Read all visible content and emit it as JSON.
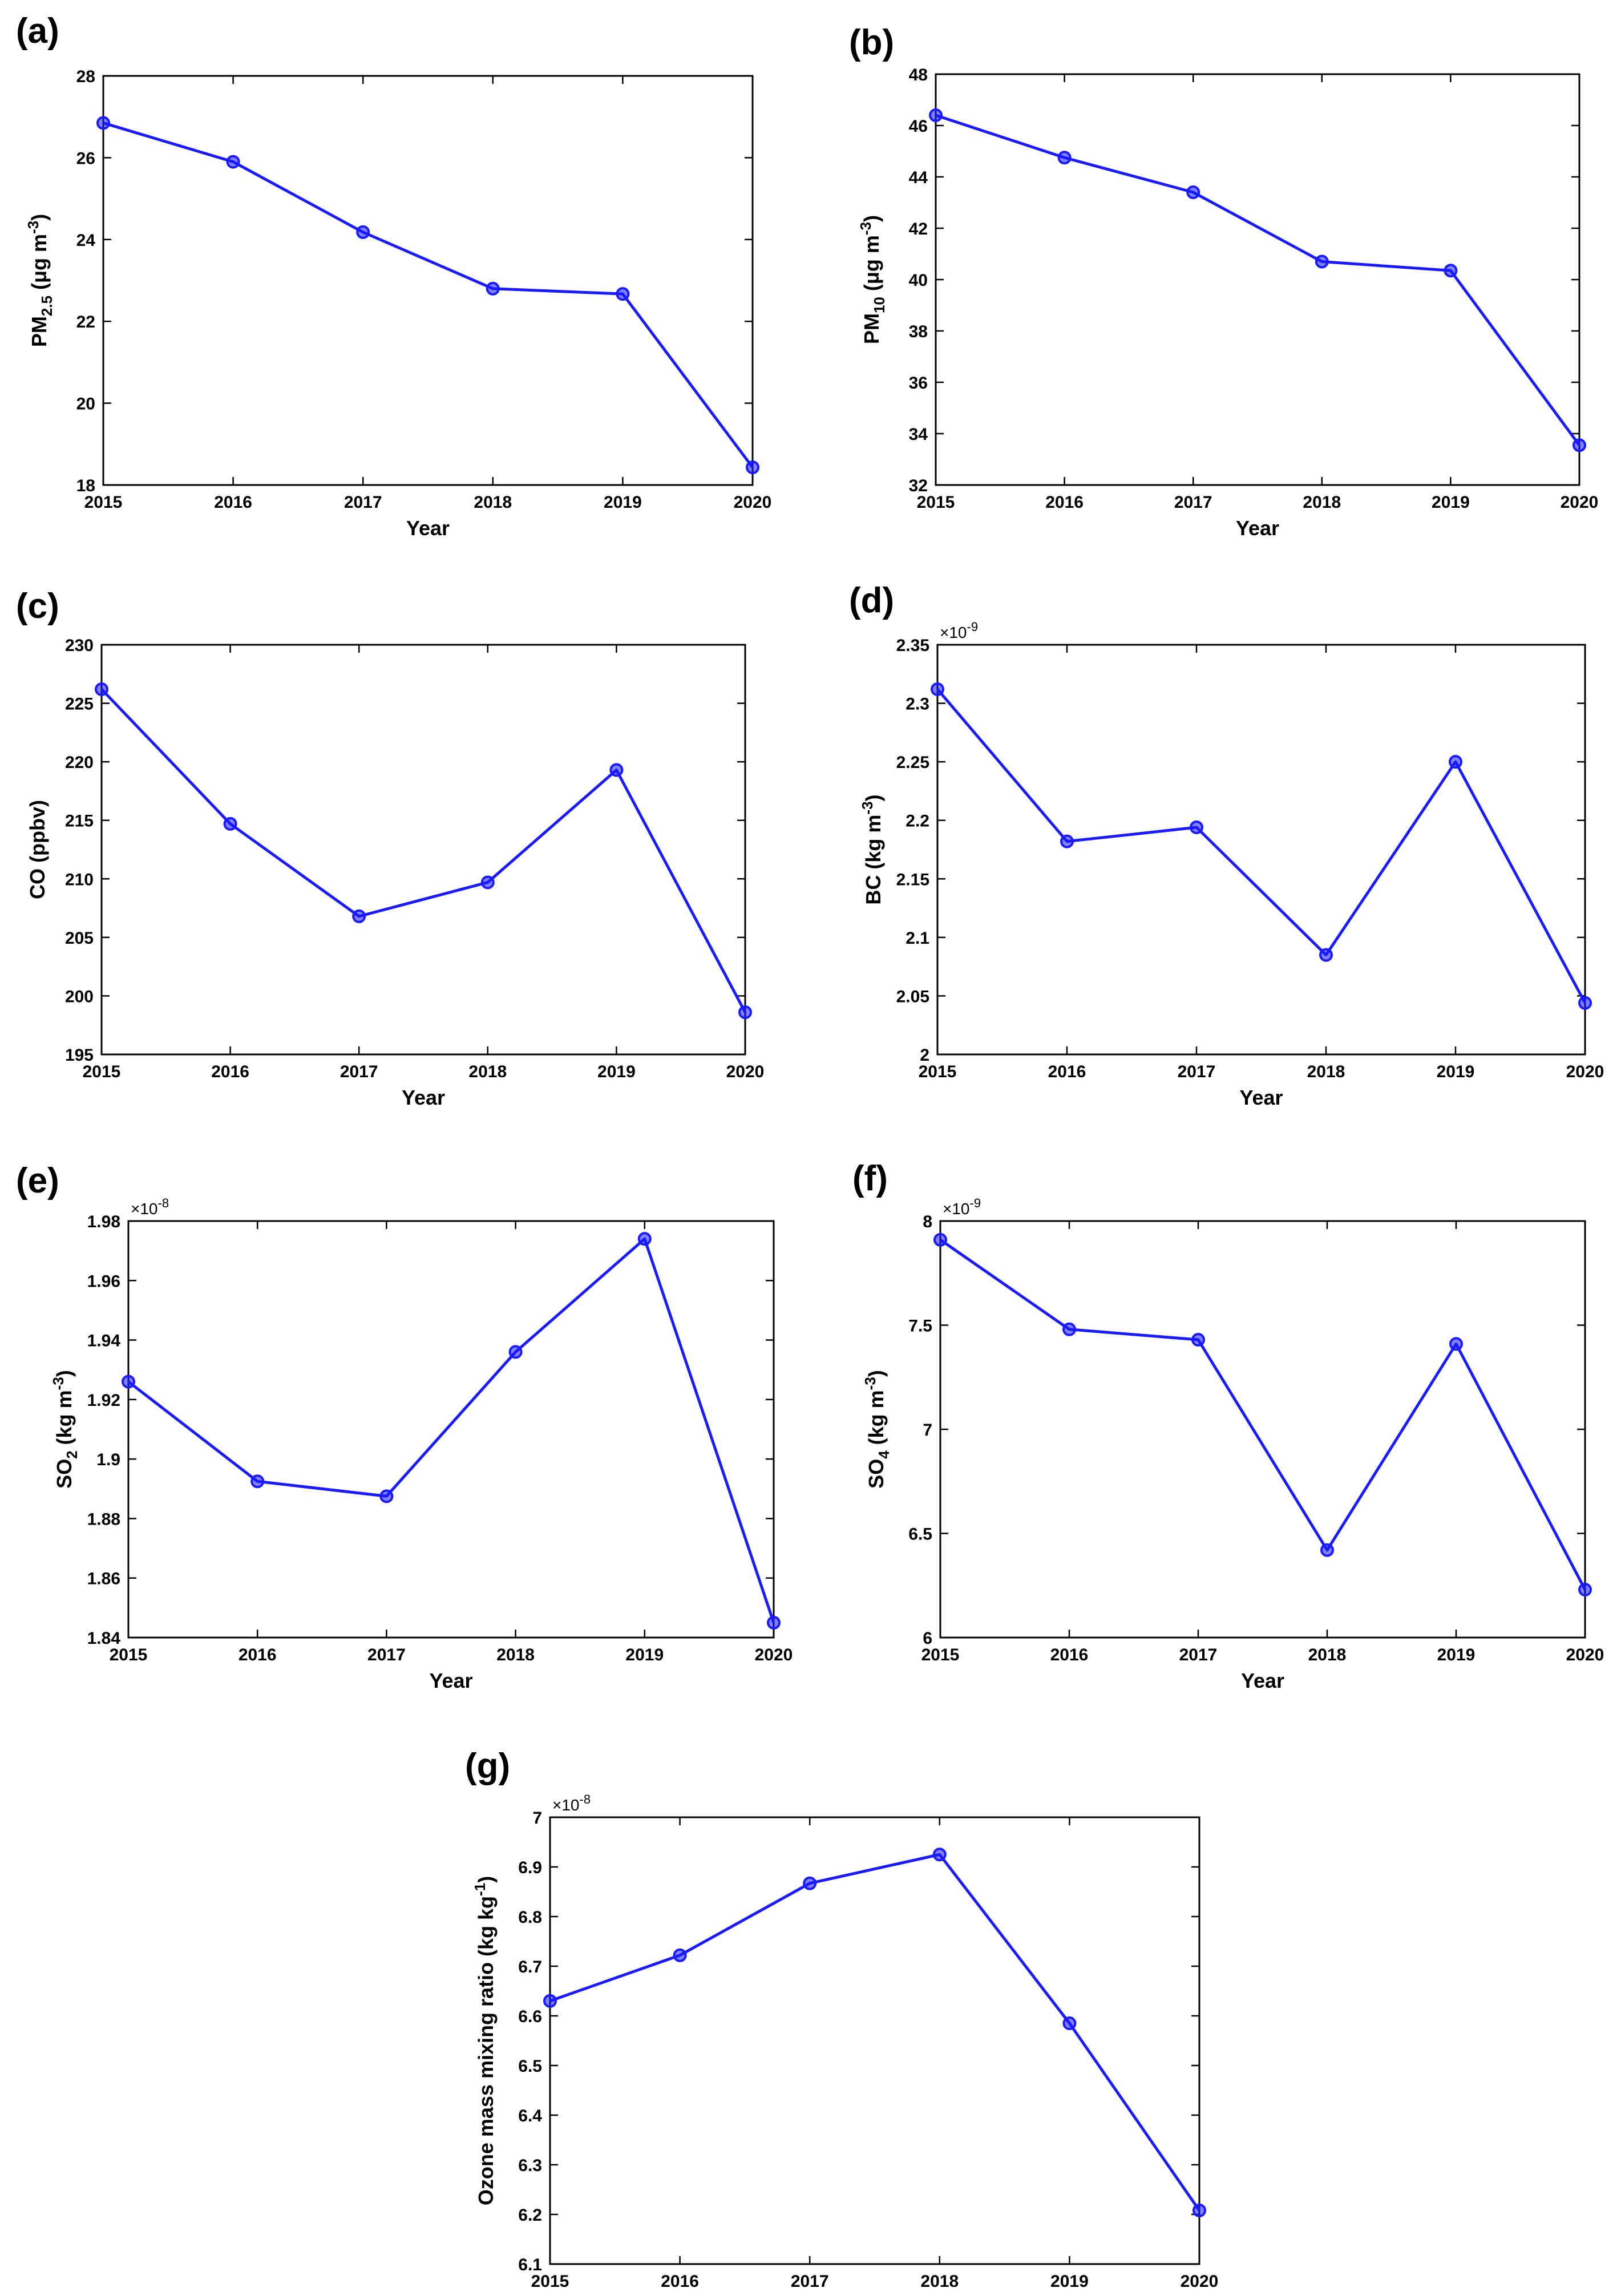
{
  "colors": {
    "series": "#1a1aff",
    "axis": "#000000",
    "background": "#ffffff"
  },
  "chart_data": [
    {
      "type": "line",
      "panel_label": "(a)",
      "x": [
        2015,
        2016,
        2017,
        2018,
        2019,
        2020
      ],
      "values": [
        26.85,
        25.9,
        24.18,
        22.8,
        22.67,
        18.43
      ],
      "xlabel": "Year",
      "ylabel": {
        "main": "PM",
        "sub": "2.5",
        "unit": " (μg m",
        "sup": "-3",
        "end": ")"
      },
      "ylim": [
        18,
        28
      ],
      "yticks": [
        18,
        20,
        22,
        24,
        26,
        28
      ],
      "ytick_labels": [
        "18",
        "20",
        "22",
        "24",
        "26",
        "28"
      ],
      "exponent": null
    },
    {
      "type": "line",
      "panel_label": "(b)",
      "x": [
        2015,
        2016,
        2017,
        2018,
        2019,
        2020
      ],
      "values": [
        46.4,
        44.75,
        43.4,
        40.7,
        40.35,
        33.55
      ],
      "xlabel": "Year",
      "ylabel": {
        "main": "PM",
        "sub": "10",
        "unit": " (μg m",
        "sup": "-3",
        "end": ")"
      },
      "ylim": [
        32,
        48
      ],
      "yticks": [
        32,
        34,
        36,
        38,
        40,
        42,
        44,
        46,
        48
      ],
      "ytick_labels": [
        "32",
        "34",
        "36",
        "38",
        "40",
        "42",
        "44",
        "46",
        "48"
      ],
      "exponent": null
    },
    {
      "type": "line",
      "panel_label": "(c)",
      "x": [
        2015,
        2016,
        2017,
        2018,
        2019,
        2020
      ],
      "values": [
        226.2,
        214.7,
        206.8,
        209.7,
        219.3,
        198.6
      ],
      "xlabel": "Year",
      "ylabel": {
        "main": "CO (ppbv)",
        "sub": "",
        "unit": "",
        "sup": "",
        "end": ""
      },
      "ylim": [
        195,
        230
      ],
      "yticks": [
        195,
        200,
        205,
        210,
        215,
        220,
        225,
        230
      ],
      "ytick_labels": [
        "195",
        "200",
        "205",
        "210",
        "215",
        "220",
        "225",
        "230"
      ],
      "exponent": null
    },
    {
      "type": "line",
      "panel_label": "(d)",
      "x": [
        2015,
        2016,
        2017,
        2018,
        2019,
        2020
      ],
      "values": [
        2.312,
        2.182,
        2.194,
        2.085,
        2.25,
        2.044
      ],
      "xlabel": "Year",
      "ylabel": {
        "main": "BC (kg m",
        "sub": "",
        "unit": "",
        "sup": "-3",
        "end": ")"
      },
      "ylim": [
        2.0,
        2.35
      ],
      "yticks": [
        2.0,
        2.05,
        2.1,
        2.15,
        2.2,
        2.25,
        2.3,
        2.35
      ],
      "ytick_labels": [
        "2",
        "2.05",
        "2.1",
        "2.15",
        "2.2",
        "2.25",
        "2.3",
        "2.35"
      ],
      "exponent": {
        "base": "×10",
        "power": "-9"
      }
    },
    {
      "type": "line",
      "panel_label": "(e)",
      "x": [
        2015,
        2016,
        2017,
        2018,
        2019,
        2020
      ],
      "values": [
        1.926,
        1.8925,
        1.8875,
        1.936,
        1.974,
        1.845
      ],
      "xlabel": "Year",
      "ylabel": {
        "main": "SO",
        "sub": "2",
        "unit": " (kg m",
        "sup": "-3",
        "end": ")"
      },
      "ylim": [
        1.84,
        1.98
      ],
      "yticks": [
        1.84,
        1.86,
        1.88,
        1.9,
        1.92,
        1.94,
        1.96,
        1.98
      ],
      "ytick_labels": [
        "1.84",
        "1.86",
        "1.88",
        "1.9",
        "1.92",
        "1.94",
        "1.96",
        "1.98"
      ],
      "exponent": {
        "base": "×10",
        "power": "-8"
      }
    },
    {
      "type": "line",
      "panel_label": "(f)",
      "x": [
        2015,
        2016,
        2017,
        2018,
        2019,
        2020
      ],
      "values": [
        7.91,
        7.48,
        7.43,
        6.42,
        7.41,
        6.23
      ],
      "xlabel": "Year",
      "ylabel": {
        "main": "SO",
        "sub": "4",
        "unit": " (kg m",
        "sup": "-3",
        "end": ")"
      },
      "ylim": [
        6,
        8
      ],
      "yticks": [
        6,
        6.5,
        7,
        7.5,
        8
      ],
      "ytick_labels": [
        "6",
        "6.5",
        "7",
        "7.5",
        "8"
      ],
      "exponent": {
        "base": "×10",
        "power": "-9"
      }
    },
    {
      "type": "line",
      "panel_label": "(g)",
      "x": [
        2015,
        2016,
        2017,
        2018,
        2019,
        2020
      ],
      "values": [
        6.63,
        6.722,
        6.867,
        6.925,
        6.585,
        6.208
      ],
      "xlabel": "Year",
      "ylabel": {
        "main": "Ozone mass mixing ratio (kg kg",
        "sub": "",
        "unit": "",
        "sup": "-1",
        "end": ")"
      },
      "ylim": [
        6.1,
        7.0
      ],
      "yticks": [
        6.1,
        6.2,
        6.3,
        6.4,
        6.5,
        6.6,
        6.7,
        6.8,
        6.9,
        7.0
      ],
      "ytick_labels": [
        "6.1",
        "6.2",
        "6.3",
        "6.4",
        "6.5",
        "6.6",
        "6.7",
        "6.8",
        "6.9",
        "7"
      ],
      "exponent": {
        "base": "×10",
        "power": "-8"
      }
    }
  ]
}
